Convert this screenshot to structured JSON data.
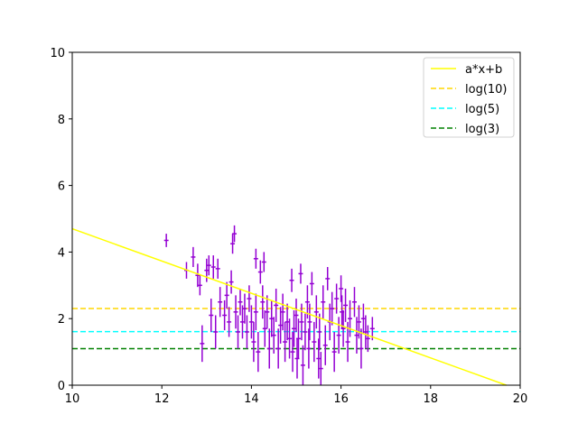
{
  "chart_data": {
    "type": "scatter",
    "xlim": [
      10,
      20
    ],
    "ylim": [
      0,
      10
    ],
    "x_ticks": [
      "10",
      "12",
      "14",
      "16",
      "18",
      "20"
    ],
    "y_ticks": [
      "0",
      "2",
      "4",
      "6",
      "8",
      "10"
    ],
    "grid": false,
    "legend_position": "top-right",
    "colors": {
      "points": "#9400d3",
      "fit": "#ffff00",
      "log10": "#ffd700",
      "log5": "#00ffff",
      "log3": "#008000"
    },
    "lines": [
      {
        "name": "a*x+b",
        "style": "solid",
        "color": "#ffff00",
        "slope": -0.485,
        "intercept": 9.55
      },
      {
        "name": "log(10)",
        "style": "dashed",
        "color": "#ffd700",
        "y": 2.303
      },
      {
        "name": "log(5)",
        "style": "dashed",
        "color": "#00ffff",
        "y": 1.609
      },
      {
        "name": "log(3)",
        "style": "dashed",
        "color": "#008000",
        "y": 1.099
      }
    ],
    "points": [
      [
        12.1,
        4.35,
        0.05,
        0.2
      ],
      [
        12.55,
        3.45,
        0.05,
        0.25
      ],
      [
        12.7,
        3.85,
        0.05,
        0.3
      ],
      [
        12.8,
        3.3,
        0.05,
        0.35
      ],
      [
        12.85,
        3.0,
        0.05,
        0.3
      ],
      [
        12.9,
        1.25,
        0.05,
        0.55
      ],
      [
        13.0,
        3.45,
        0.05,
        0.35
      ],
      [
        13.05,
        3.6,
        0.05,
        0.3
      ],
      [
        13.1,
        2.1,
        0.05,
        0.5
      ],
      [
        13.15,
        3.55,
        0.05,
        0.35
      ],
      [
        13.2,
        1.6,
        0.05,
        0.5
      ],
      [
        13.25,
        3.5,
        0.05,
        0.3
      ],
      [
        13.3,
        2.5,
        0.05,
        0.45
      ],
      [
        13.4,
        2.1,
        0.05,
        0.45
      ],
      [
        13.45,
        2.7,
        0.05,
        0.4
      ],
      [
        13.5,
        1.9,
        0.05,
        0.45
      ],
      [
        13.55,
        3.1,
        0.05,
        0.35
      ],
      [
        13.58,
        4.25,
        0.05,
        0.3
      ],
      [
        13.62,
        4.55,
        0.05,
        0.25
      ],
      [
        13.65,
        2.2,
        0.05,
        0.5
      ],
      [
        13.7,
        1.6,
        0.05,
        0.5
      ],
      [
        13.75,
        2.5,
        0.05,
        0.4
      ],
      [
        13.8,
        1.9,
        0.05,
        0.5
      ],
      [
        13.85,
        2.3,
        0.05,
        0.45
      ],
      [
        13.9,
        1.6,
        0.05,
        0.5
      ],
      [
        13.95,
        2.6,
        0.05,
        0.4
      ],
      [
        14.0,
        1.9,
        0.05,
        0.5
      ],
      [
        14.05,
        1.3,
        0.05,
        0.6
      ],
      [
        14.1,
        2.2,
        0.05,
        0.55
      ],
      [
        14.1,
        3.8,
        0.05,
        0.3
      ],
      [
        14.15,
        1.0,
        0.05,
        0.6
      ],
      [
        14.2,
        3.4,
        0.05,
        0.35
      ],
      [
        14.25,
        2.5,
        0.05,
        0.5
      ],
      [
        14.28,
        3.7,
        0.05,
        0.3
      ],
      [
        14.3,
        1.7,
        0.05,
        0.55
      ],
      [
        14.35,
        2.2,
        0.05,
        0.5
      ],
      [
        14.4,
        1.1,
        0.05,
        0.6
      ],
      [
        14.45,
        2.0,
        0.05,
        0.55
      ],
      [
        14.5,
        1.5,
        0.05,
        0.55
      ],
      [
        14.55,
        2.4,
        0.05,
        0.5
      ],
      [
        14.6,
        1.1,
        0.05,
        0.6
      ],
      [
        14.65,
        1.8,
        0.05,
        0.55
      ],
      [
        14.7,
        2.2,
        0.05,
        0.55
      ],
      [
        14.75,
        1.3,
        0.05,
        0.6
      ],
      [
        14.8,
        1.9,
        0.05,
        0.55
      ],
      [
        14.85,
        1.4,
        0.05,
        0.6
      ],
      [
        14.9,
        3.15,
        0.05,
        0.35
      ],
      [
        14.92,
        1.0,
        0.05,
        0.6
      ],
      [
        14.95,
        1.7,
        0.05,
        0.55
      ],
      [
        15.0,
        2.1,
        0.05,
        0.5
      ],
      [
        15.02,
        0.8,
        0.05,
        0.6
      ],
      [
        15.05,
        1.4,
        0.05,
        0.6
      ],
      [
        15.1,
        3.35,
        0.05,
        0.3
      ],
      [
        15.12,
        1.9,
        0.05,
        0.55
      ],
      [
        15.15,
        0.6,
        0.05,
        0.6
      ],
      [
        15.2,
        1.6,
        0.05,
        0.55
      ],
      [
        15.25,
        2.5,
        0.05,
        0.5
      ],
      [
        15.28,
        1.1,
        0.05,
        0.6
      ],
      [
        15.3,
        1.9,
        0.05,
        0.55
      ],
      [
        15.35,
        3.05,
        0.05,
        0.35
      ],
      [
        15.4,
        1.3,
        0.05,
        0.6
      ],
      [
        15.45,
        2.2,
        0.05,
        0.5
      ],
      [
        15.5,
        0.8,
        0.05,
        0.6
      ],
      [
        15.52,
        1.6,
        0.05,
        0.55
      ],
      [
        15.55,
        0.5,
        0.05,
        0.5
      ],
      [
        15.6,
        2.5,
        0.05,
        0.5
      ],
      [
        15.65,
        1.2,
        0.05,
        0.6
      ],
      [
        15.7,
        3.2,
        0.05,
        0.35
      ],
      [
        15.75,
        1.9,
        0.05,
        0.55
      ],
      [
        15.8,
        2.3,
        0.05,
        0.5
      ],
      [
        15.85,
        1.0,
        0.05,
        0.6
      ],
      [
        15.9,
        2.6,
        0.05,
        0.45
      ],
      [
        15.95,
        1.5,
        0.05,
        0.55
      ],
      [
        16.0,
        2.9,
        0.05,
        0.4
      ],
      [
        16.02,
        2.2,
        0.05,
        0.5
      ],
      [
        16.05,
        1.7,
        0.05,
        0.55
      ],
      [
        16.1,
        2.4,
        0.05,
        0.5
      ],
      [
        16.15,
        1.3,
        0.05,
        0.6
      ],
      [
        16.2,
        2.0,
        0.05,
        0.55
      ],
      [
        16.3,
        2.5,
        0.05,
        0.45
      ],
      [
        16.35,
        1.5,
        0.05,
        0.55
      ],
      [
        16.4,
        1.9,
        0.05,
        0.5
      ],
      [
        16.45,
        1.1,
        0.05,
        0.6
      ],
      [
        16.5,
        2.0,
        0.05,
        0.45
      ],
      [
        16.55,
        1.6,
        0.05,
        0.5
      ],
      [
        16.6,
        1.4,
        0.05,
        0.4
      ],
      [
        16.7,
        1.7,
        0.05,
        0.35
      ]
    ]
  }
}
